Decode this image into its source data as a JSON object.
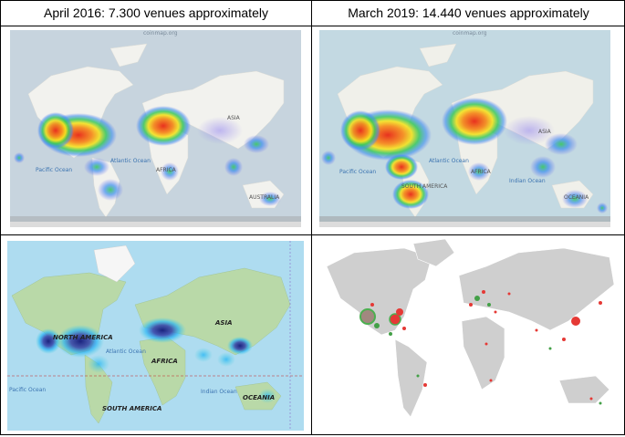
{
  "headers": {
    "left": "April 2016: 7.300 venues approximately",
    "right": "March 2019: 14.440 venues approximately"
  },
  "top_left_map": {
    "title": "coinmap.org",
    "labels": {
      "africa": "AFRICA",
      "asia": "ASIA",
      "australia": "AUSTRALIA",
      "pacific": "Pacific Ocean",
      "atlantic": "Atlantic Ocean"
    }
  },
  "top_right_map": {
    "title": "coinmap.org",
    "labels": {
      "asia": "ASIA",
      "africa": "AFRICA",
      "south_america": "SOUTH AMERICA",
      "oceania": "OCEANIA",
      "pacific": "Pacific Ocean",
      "atlantic": "Atlantic Ocean",
      "indian": "Indian Ocean"
    }
  },
  "bottom_left_map": {
    "labels": {
      "north_america": "NORTH AMERICA",
      "asia": "ASIA",
      "africa": "AFRICA",
      "south_america": "SOUTH AMERICA",
      "oceania": "OCEANIA",
      "atlantic": "Atlantic Ocean",
      "pacific": "Pacific Ocean",
      "indian": "Indian Ocean"
    }
  }
}
